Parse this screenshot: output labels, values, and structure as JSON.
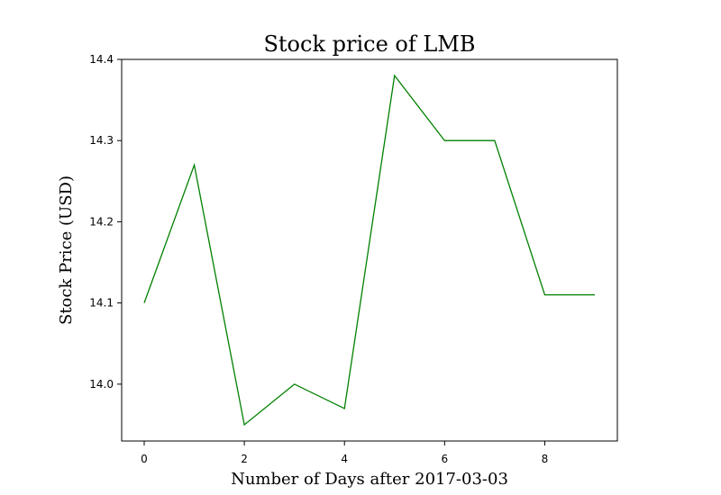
{
  "chart_data": {
    "type": "line",
    "title": "Stock price of LMB",
    "xlabel": "Number of Days after 2017-03-03",
    "ylabel": "Stock Price (USD)",
    "x": [
      0,
      1,
      2,
      3,
      4,
      5,
      6,
      7,
      8,
      9
    ],
    "series": [
      {
        "values": [
          14.1,
          14.27,
          13.95,
          14.0,
          13.97,
          14.38,
          14.3,
          14.3,
          14.11,
          14.11
        ]
      }
    ],
    "xlim": [
      -0.45,
      9.45
    ],
    "ylim": [
      13.93,
      14.4
    ],
    "xticks": [
      0,
      2,
      4,
      6,
      8
    ],
    "xtick_labels": [
      "0",
      "2",
      "4",
      "6",
      "8"
    ],
    "yticks": [
      14.0,
      14.1,
      14.2,
      14.3,
      14.4
    ],
    "ytick_labels": [
      "14.0",
      "14.1",
      "14.2",
      "14.3",
      "14.4"
    ],
    "grid": false,
    "colors": {
      "line": "#008000"
    }
  }
}
